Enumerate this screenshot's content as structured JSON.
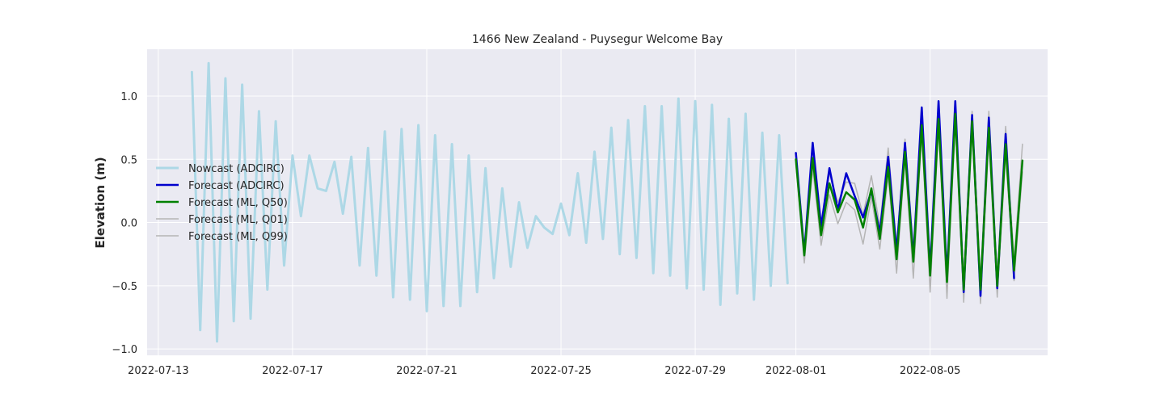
{
  "chart_data": {
    "type": "line",
    "title": "1466 New Zealand - Puysegur Welcome Bay",
    "xlabel": "",
    "ylabel": "Elevation (m)",
    "x_axis_type": "date",
    "xlim": [
      "2022-07-12T16:00",
      "2022-08-08T12:00"
    ],
    "ylim": [
      -1.05,
      1.37
    ],
    "x_ticks": [
      "2022-07-13",
      "2022-07-17",
      "2022-07-21",
      "2022-07-25",
      "2022-07-29",
      "2022-08-01",
      "2022-08-05"
    ],
    "y_ticks": [
      1.0,
      0.5,
      0.0,
      -0.5,
      -1.0
    ],
    "y_tick_labels": [
      "1.0",
      "0.5",
      "0.0",
      "−0.5",
      "−1.0"
    ],
    "grid": true,
    "legend_position": "center-left",
    "colors": {
      "plot_background": "#eaeaf2",
      "grid": "#ffffff",
      "nowcast": "#add8e6",
      "forecast_adcirc": "#0000cd",
      "forecast_ml_q50": "#008000",
      "forecast_ml_q01": "#b5b5b5",
      "forecast_ml_q99": "#b5b5b5"
    },
    "series": [
      {
        "name": "Nowcast (ADCIRC)",
        "color_key": "nowcast",
        "width": 3,
        "points": [
          [
            "2022-07-14T00:00",
            1.19
          ],
          [
            "2022-07-14T06:00",
            -0.85
          ],
          [
            "2022-07-14T12:00",
            1.26
          ],
          [
            "2022-07-14T18:00",
            -0.94
          ],
          [
            "2022-07-15T00:00",
            1.14
          ],
          [
            "2022-07-15T06:00",
            -0.78
          ],
          [
            "2022-07-15T12:00",
            1.09
          ],
          [
            "2022-07-15T18:00",
            -0.76
          ],
          [
            "2022-07-16T00:00",
            0.88
          ],
          [
            "2022-07-16T06:00",
            -0.53
          ],
          [
            "2022-07-16T12:00",
            0.8
          ],
          [
            "2022-07-16T18:00",
            -0.34
          ],
          [
            "2022-07-17T00:00",
            0.53
          ],
          [
            "2022-07-17T06:00",
            0.05
          ],
          [
            "2022-07-17T12:00",
            0.53
          ],
          [
            "2022-07-17T18:00",
            0.27
          ],
          [
            "2022-07-18T00:00",
            0.25
          ],
          [
            "2022-07-18T06:00",
            0.48
          ],
          [
            "2022-07-18T12:00",
            0.07
          ],
          [
            "2022-07-18T18:00",
            0.52
          ],
          [
            "2022-07-19T00:00",
            -0.34
          ],
          [
            "2022-07-19T06:00",
            0.59
          ],
          [
            "2022-07-19T12:00",
            -0.42
          ],
          [
            "2022-07-19T18:00",
            0.72
          ],
          [
            "2022-07-20T00:00",
            -0.59
          ],
          [
            "2022-07-20T06:00",
            0.74
          ],
          [
            "2022-07-20T12:00",
            -0.61
          ],
          [
            "2022-07-20T18:00",
            0.77
          ],
          [
            "2022-07-21T00:00",
            -0.7
          ],
          [
            "2022-07-21T06:00",
            0.69
          ],
          [
            "2022-07-21T12:00",
            -0.66
          ],
          [
            "2022-07-21T18:00",
            0.62
          ],
          [
            "2022-07-22T00:00",
            -0.66
          ],
          [
            "2022-07-22T06:00",
            0.53
          ],
          [
            "2022-07-22T12:00",
            -0.55
          ],
          [
            "2022-07-22T18:00",
            0.43
          ],
          [
            "2022-07-23T00:00",
            -0.44
          ],
          [
            "2022-07-23T06:00",
            0.27
          ],
          [
            "2022-07-23T12:00",
            -0.35
          ],
          [
            "2022-07-23T18:00",
            0.16
          ],
          [
            "2022-07-24T00:00",
            -0.2
          ],
          [
            "2022-07-24T06:00",
            0.05
          ],
          [
            "2022-07-24T12:00",
            -0.04
          ],
          [
            "2022-07-24T18:00",
            -0.09
          ],
          [
            "2022-07-25T00:00",
            0.15
          ],
          [
            "2022-07-25T06:00",
            -0.1
          ],
          [
            "2022-07-25T12:00",
            0.39
          ],
          [
            "2022-07-25T18:00",
            -0.16
          ],
          [
            "2022-07-26T00:00",
            0.56
          ],
          [
            "2022-07-26T06:00",
            -0.13
          ],
          [
            "2022-07-26T12:00",
            0.75
          ],
          [
            "2022-07-26T18:00",
            -0.25
          ],
          [
            "2022-07-27T00:00",
            0.81
          ],
          [
            "2022-07-27T06:00",
            -0.28
          ],
          [
            "2022-07-27T12:00",
            0.92
          ],
          [
            "2022-07-27T18:00",
            -0.4
          ],
          [
            "2022-07-28T00:00",
            0.92
          ],
          [
            "2022-07-28T06:00",
            -0.42
          ],
          [
            "2022-07-28T12:00",
            0.98
          ],
          [
            "2022-07-28T18:00",
            -0.52
          ],
          [
            "2022-07-29T00:00",
            0.96
          ],
          [
            "2022-07-29T06:00",
            -0.53
          ],
          [
            "2022-07-29T12:00",
            0.93
          ],
          [
            "2022-07-29T18:00",
            -0.65
          ],
          [
            "2022-07-30T00:00",
            0.82
          ],
          [
            "2022-07-30T06:00",
            -0.56
          ],
          [
            "2022-07-30T12:00",
            0.86
          ],
          [
            "2022-07-30T18:00",
            -0.61
          ],
          [
            "2022-07-31T00:00",
            0.71
          ],
          [
            "2022-07-31T06:00",
            -0.5
          ],
          [
            "2022-07-31T12:00",
            0.69
          ],
          [
            "2022-07-31T18:00",
            -0.48
          ]
        ]
      },
      {
        "name": "Forecast (ADCIRC)",
        "color_key": "forecast_adcirc",
        "width": 2.5,
        "points": [
          [
            "2022-08-01T00:00",
            0.55
          ],
          [
            "2022-08-01T06:00",
            -0.24
          ],
          [
            "2022-08-01T12:00",
            0.63
          ],
          [
            "2022-08-01T18:00",
            -0.03
          ],
          [
            "2022-08-02T00:00",
            0.43
          ],
          [
            "2022-08-02T06:00",
            0.1
          ],
          [
            "2022-08-02T12:00",
            0.39
          ],
          [
            "2022-08-02T18:00",
            0.21
          ],
          [
            "2022-08-03T00:00",
            0.04
          ],
          [
            "2022-08-03T06:00",
            0.25
          ],
          [
            "2022-08-03T12:00",
            -0.08
          ],
          [
            "2022-08-03T18:00",
            0.52
          ],
          [
            "2022-08-04T00:00",
            -0.23
          ],
          [
            "2022-08-04T06:00",
            0.63
          ],
          [
            "2022-08-04T12:00",
            -0.28
          ],
          [
            "2022-08-04T18:00",
            0.91
          ],
          [
            "2022-08-05T00:00",
            -0.38
          ],
          [
            "2022-08-05T06:00",
            0.96
          ],
          [
            "2022-08-05T12:00",
            -0.43
          ],
          [
            "2022-08-05T18:00",
            0.96
          ],
          [
            "2022-08-06T00:00",
            -0.55
          ],
          [
            "2022-08-06T06:00",
            0.85
          ],
          [
            "2022-08-06T12:00",
            -0.58
          ],
          [
            "2022-08-06T18:00",
            0.83
          ],
          [
            "2022-08-07T00:00",
            -0.52
          ],
          [
            "2022-08-07T06:00",
            0.7
          ],
          [
            "2022-08-07T12:00",
            -0.44
          ]
        ]
      },
      {
        "name": "Forecast (ML, Q50)",
        "color_key": "forecast_ml_q50",
        "width": 2.5,
        "points": [
          [
            "2022-08-01T00:00",
            0.5
          ],
          [
            "2022-08-01T06:00",
            -0.26
          ],
          [
            "2022-08-01T12:00",
            0.51
          ],
          [
            "2022-08-01T18:00",
            -0.1
          ],
          [
            "2022-08-02T00:00",
            0.31
          ],
          [
            "2022-08-02T06:00",
            0.08
          ],
          [
            "2022-08-02T12:00",
            0.24
          ],
          [
            "2022-08-02T18:00",
            0.18
          ],
          [
            "2022-08-03T00:00",
            -0.04
          ],
          [
            "2022-08-03T06:00",
            0.27
          ],
          [
            "2022-08-03T12:00",
            -0.13
          ],
          [
            "2022-08-03T18:00",
            0.44
          ],
          [
            "2022-08-04T00:00",
            -0.29
          ],
          [
            "2022-08-04T06:00",
            0.56
          ],
          [
            "2022-08-04T12:00",
            -0.31
          ],
          [
            "2022-08-04T18:00",
            0.77
          ],
          [
            "2022-08-05T00:00",
            -0.42
          ],
          [
            "2022-08-05T06:00",
            0.82
          ],
          [
            "2022-08-05T12:00",
            -0.47
          ],
          [
            "2022-08-05T18:00",
            0.86
          ],
          [
            "2022-08-06T00:00",
            -0.53
          ],
          [
            "2022-08-06T06:00",
            0.8
          ],
          [
            "2022-08-06T12:00",
            -0.53
          ],
          [
            "2022-08-06T18:00",
            0.75
          ],
          [
            "2022-08-07T00:00",
            -0.5
          ],
          [
            "2022-08-07T06:00",
            0.62
          ],
          [
            "2022-08-07T12:00",
            -0.38
          ],
          [
            "2022-08-07T18:00",
            0.49
          ]
        ]
      },
      {
        "name": "Forecast (ML, Q01)",
        "color_key": "forecast_ml_q01",
        "width": 1.5,
        "points": [
          [
            "2022-08-01T00:00",
            0.46
          ],
          [
            "2022-08-01T06:00",
            -0.32
          ],
          [
            "2022-08-01T12:00",
            0.43
          ],
          [
            "2022-08-01T18:00",
            -0.18
          ],
          [
            "2022-08-02T00:00",
            0.22
          ],
          [
            "2022-08-02T06:00",
            -0.01
          ],
          [
            "2022-08-02T12:00",
            0.16
          ],
          [
            "2022-08-02T18:00",
            0.1
          ],
          [
            "2022-08-03T00:00",
            -0.17
          ],
          [
            "2022-08-03T06:00",
            0.2
          ],
          [
            "2022-08-03T12:00",
            -0.21
          ],
          [
            "2022-08-03T18:00",
            0.37
          ],
          [
            "2022-08-04T00:00",
            -0.4
          ],
          [
            "2022-08-04T06:00",
            0.5
          ],
          [
            "2022-08-04T12:00",
            -0.44
          ],
          [
            "2022-08-04T18:00",
            0.7
          ],
          [
            "2022-08-05T00:00",
            -0.55
          ],
          [
            "2022-08-05T06:00",
            0.76
          ],
          [
            "2022-08-05T12:00",
            -0.6
          ],
          [
            "2022-08-05T18:00",
            0.79
          ],
          [
            "2022-08-06T00:00",
            -0.63
          ],
          [
            "2022-08-06T06:00",
            0.73
          ],
          [
            "2022-08-06T12:00",
            -0.64
          ],
          [
            "2022-08-06T18:00",
            0.67
          ],
          [
            "2022-08-07T00:00",
            -0.59
          ],
          [
            "2022-08-07T06:00",
            0.54
          ],
          [
            "2022-08-07T12:00",
            -0.46
          ],
          [
            "2022-08-07T18:00",
            0.4
          ]
        ]
      },
      {
        "name": "Forecast (ML, Q99)",
        "color_key": "forecast_ml_q99",
        "width": 1.5,
        "points": [
          [
            "2022-08-01T00:00",
            0.54
          ],
          [
            "2022-08-01T06:00",
            -0.2
          ],
          [
            "2022-08-01T12:00",
            0.58
          ],
          [
            "2022-08-01T18:00",
            -0.02
          ],
          [
            "2022-08-02T00:00",
            0.39
          ],
          [
            "2022-08-02T06:00",
            0.16
          ],
          [
            "2022-08-02T12:00",
            0.32
          ],
          [
            "2022-08-02T18:00",
            0.31
          ],
          [
            "2022-08-03T00:00",
            0.06
          ],
          [
            "2022-08-03T06:00",
            0.37
          ],
          [
            "2022-08-03T12:00",
            -0.03
          ],
          [
            "2022-08-03T18:00",
            0.59
          ],
          [
            "2022-08-04T00:00",
            -0.18
          ],
          [
            "2022-08-04T06:00",
            0.66
          ],
          [
            "2022-08-04T12:00",
            -0.2
          ],
          [
            "2022-08-04T18:00",
            0.85
          ],
          [
            "2022-08-05T00:00",
            -0.3
          ],
          [
            "2022-08-05T06:00",
            0.9
          ],
          [
            "2022-08-05T12:00",
            -0.37
          ],
          [
            "2022-08-05T18:00",
            0.94
          ],
          [
            "2022-08-06T00:00",
            -0.43
          ],
          [
            "2022-08-06T06:00",
            0.88
          ],
          [
            "2022-08-06T12:00",
            -0.45
          ],
          [
            "2022-08-06T18:00",
            0.88
          ],
          [
            "2022-08-07T00:00",
            -0.42
          ],
          [
            "2022-08-07T06:00",
            0.76
          ],
          [
            "2022-08-07T12:00",
            -0.3
          ],
          [
            "2022-08-07T18:00",
            0.62
          ]
        ]
      }
    ]
  }
}
